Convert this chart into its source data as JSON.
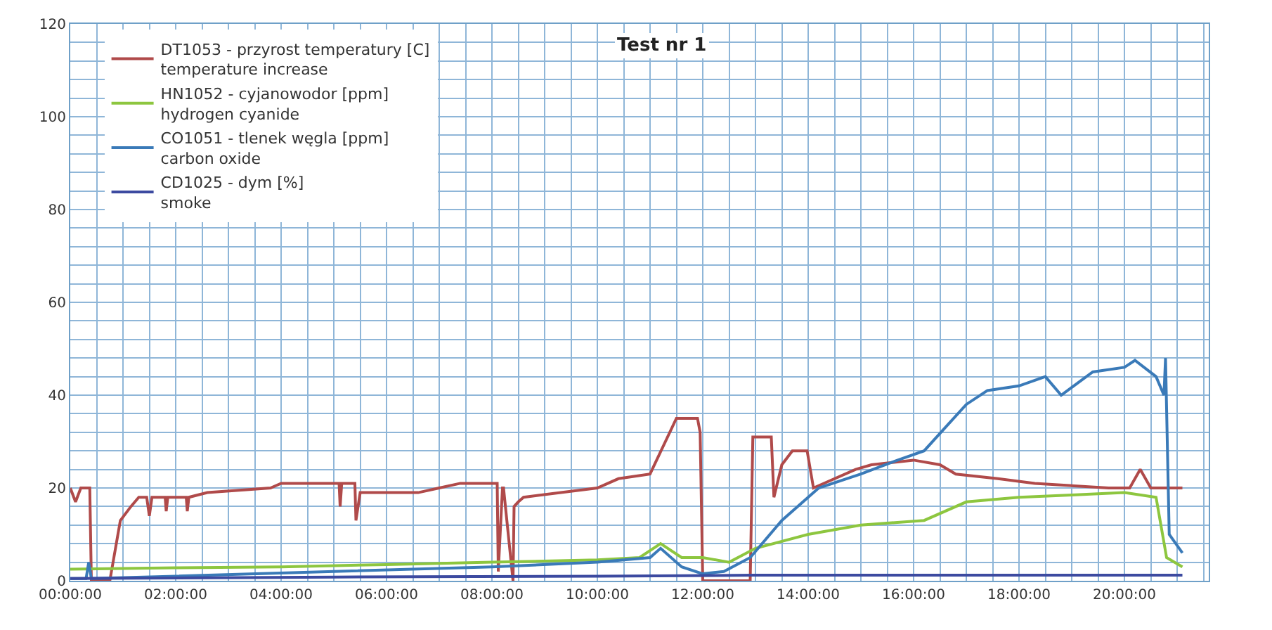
{
  "chart_data": {
    "type": "line",
    "title": "Test nr 1",
    "legend": "top left",
    "grid": true,
    "marker": "none",
    "line_style": "solid",
    "xlim": [
      0,
      21.6
    ],
    "ylim": [
      0,
      120
    ],
    "xticks": [
      {
        "value": 0,
        "label": "00:00:00"
      },
      {
        "value": 0.5,
        "label": null
      },
      {
        "value": 1,
        "label": null
      },
      {
        "value": 1.5,
        "label": null
      },
      {
        "value": 2,
        "label": "02:00:00"
      },
      {
        "value": 2.5,
        "label": null
      },
      {
        "value": 3,
        "label": null
      },
      {
        "value": 3.5,
        "label": null
      },
      {
        "value": 4,
        "label": "04:00:00"
      },
      {
        "value": 4.5,
        "label": null
      },
      {
        "value": 5,
        "label": null
      },
      {
        "value": 5.5,
        "label": null
      },
      {
        "value": 6,
        "label": "06:00:00"
      },
      {
        "value": 6.5,
        "label": null
      },
      {
        "value": 7,
        "label": null
      },
      {
        "value": 7.5,
        "label": null
      },
      {
        "value": 8,
        "label": "08:00:00"
      },
      {
        "value": 8.5,
        "label": null
      },
      {
        "value": 9,
        "label": null
      },
      {
        "value": 9.5,
        "label": null
      },
      {
        "value": 10,
        "label": "10:00:00"
      },
      {
        "value": 10.5,
        "label": null
      },
      {
        "value": 11,
        "label": null
      },
      {
        "value": 11.5,
        "label": null
      },
      {
        "value": 12,
        "label": "12:00:00"
      },
      {
        "value": 12.5,
        "label": null
      },
      {
        "value": 13,
        "label": null
      },
      {
        "value": 13.5,
        "label": null
      },
      {
        "value": 14,
        "label": "14:00:00"
      },
      {
        "value": 14.5,
        "label": null
      },
      {
        "value": 15,
        "label": null
      },
      {
        "value": 15.5,
        "label": null
      },
      {
        "value": 16,
        "label": "16:00:00"
      },
      {
        "value": 16.5,
        "label": null
      },
      {
        "value": 17,
        "label": null
      },
      {
        "value": 17.5,
        "label": null
      },
      {
        "value": 18,
        "label": "18:00:00"
      },
      {
        "value": 18.5,
        "label": null
      },
      {
        "value": 19,
        "label": null
      },
      {
        "value": 19.5,
        "label": null
      },
      {
        "value": 20,
        "label": "20:00:00"
      },
      {
        "value": 20.5,
        "label": null
      },
      {
        "value": 21,
        "label": null
      },
      {
        "value": 21.5,
        "label": null
      }
    ],
    "yticks": [
      0,
      {
        "value": 4,
        "label": null
      },
      {
        "value": 8,
        "label": null
      },
      {
        "value": 12,
        "label": null
      },
      {
        "value": 16,
        "label": null
      },
      20,
      {
        "value": 24,
        "label": null
      },
      {
        "value": 28,
        "label": null
      },
      {
        "value": 32,
        "label": null
      },
      {
        "value": 36,
        "label": null
      },
      40,
      {
        "value": 44,
        "label": null
      },
      {
        "value": 48,
        "label": null
      },
      {
        "value": 52,
        "label": null
      },
      {
        "value": 56,
        "label": null
      },
      60,
      {
        "value": 64,
        "label": null
      },
      {
        "value": 68,
        "label": null
      },
      {
        "value": 72,
        "label": null
      },
      {
        "value": 76,
        "label": null
      },
      80,
      {
        "value": 84,
        "label": null
      },
      {
        "value": 88,
        "label": null
      },
      {
        "value": 92,
        "label": null
      },
      {
        "value": 96,
        "label": null
      },
      100,
      {
        "value": 104,
        "label": null
      },
      {
        "value": 108,
        "label": null
      },
      {
        "value": 112,
        "label": null
      },
      {
        "value": 116,
        "label": null
      },
      120
    ],
    "series": [
      {
        "name": "DT1053 - przyrost temperatury [C]\ntemperature increase",
        "color": "#b04a4a",
        "x": [
          0,
          0.1,
          0.2,
          0.37,
          0.4,
          0.75,
          0.95,
          1.15,
          1.3,
          1.45,
          1.5,
          1.55,
          1.8,
          1.82,
          1.85,
          2.2,
          2.22,
          2.25,
          2.6,
          3.8,
          4.0,
          5.1,
          5.12,
          5.15,
          5.4,
          5.42,
          5.5,
          6.6,
          7.0,
          7.4,
          8.1,
          8.12,
          8.2,
          8.22,
          8.4,
          8.42,
          8.5,
          8.6,
          10.0,
          10.4,
          11.0,
          11.5,
          11.9,
          11.95,
          12.0,
          12.9,
          12.95,
          13.3,
          13.35,
          13.5,
          13.7,
          13.98,
          14.1,
          14.9,
          15.2,
          16.0,
          16.5,
          16.8,
          17.6,
          18.3,
          19.7,
          20.1,
          20.3,
          20.5,
          21.1
        ],
        "values": [
          20,
          17,
          20,
          20,
          0,
          0,
          13,
          16,
          18,
          18,
          14,
          18,
          18,
          15,
          18,
          18,
          15,
          18,
          19,
          20,
          21,
          21,
          16,
          21,
          21,
          13,
          19,
          19,
          20,
          21,
          21,
          2,
          20,
          20,
          0,
          16,
          17,
          18,
          20,
          22,
          23,
          35,
          35,
          32,
          0,
          0,
          31,
          31,
          18,
          25,
          28,
          28,
          20,
          24,
          25,
          26,
          25,
          23,
          22,
          21,
          20,
          20,
          24,
          20,
          20
        ]
      },
      {
        "name": "HN1052 - cyjanowodor [ppm]\nhydrogen cyanide",
        "color": "#8dc63f",
        "x": [
          0,
          2,
          4,
          6,
          8,
          10,
          10.8,
          11.2,
          11.6,
          12,
          12.5,
          13,
          14,
          15,
          16.2,
          17,
          18,
          19,
          20,
          20.6,
          20.8,
          21.1
        ],
        "values": [
          2.5,
          2.8,
          3,
          3.5,
          4,
          4.5,
          5,
          8,
          5,
          5,
          4,
          7,
          10,
          12,
          13,
          17,
          18,
          18.5,
          19,
          18,
          5,
          3
        ]
      },
      {
        "name": "CO1051 - tlenek węgla [ppm]\ncarbon oxide",
        "color": "#3a7ab8",
        "x": [
          0,
          0.3,
          0.35,
          0.4,
          2,
          5,
          8,
          10,
          11,
          11.2,
          11.6,
          12,
          12.4,
          12.9,
          13.5,
          14.2,
          15,
          15.7,
          16.2,
          16.6,
          17,
          17.4,
          18,
          18.5,
          18.8,
          19.4,
          20,
          20.2,
          20.6,
          20.75,
          20.78,
          20.85,
          21.1
        ],
        "values": [
          0.5,
          0.5,
          4,
          0.5,
          1,
          2,
          3,
          4,
          5,
          7,
          3,
          1.5,
          2,
          5,
          13,
          20,
          23,
          26,
          28,
          33,
          38,
          41,
          42,
          44,
          40,
          45,
          46,
          47.5,
          44,
          40,
          48,
          10,
          6
        ]
      },
      {
        "name": "CD1025 - dym [%]\nsmoke",
        "color": "#3c4aa0",
        "x": [
          0,
          5,
          10,
          13,
          16,
          21.1
        ],
        "values": [
          0.5,
          0.8,
          1,
          1.2,
          1.2,
          1.2
        ]
      }
    ]
  }
}
